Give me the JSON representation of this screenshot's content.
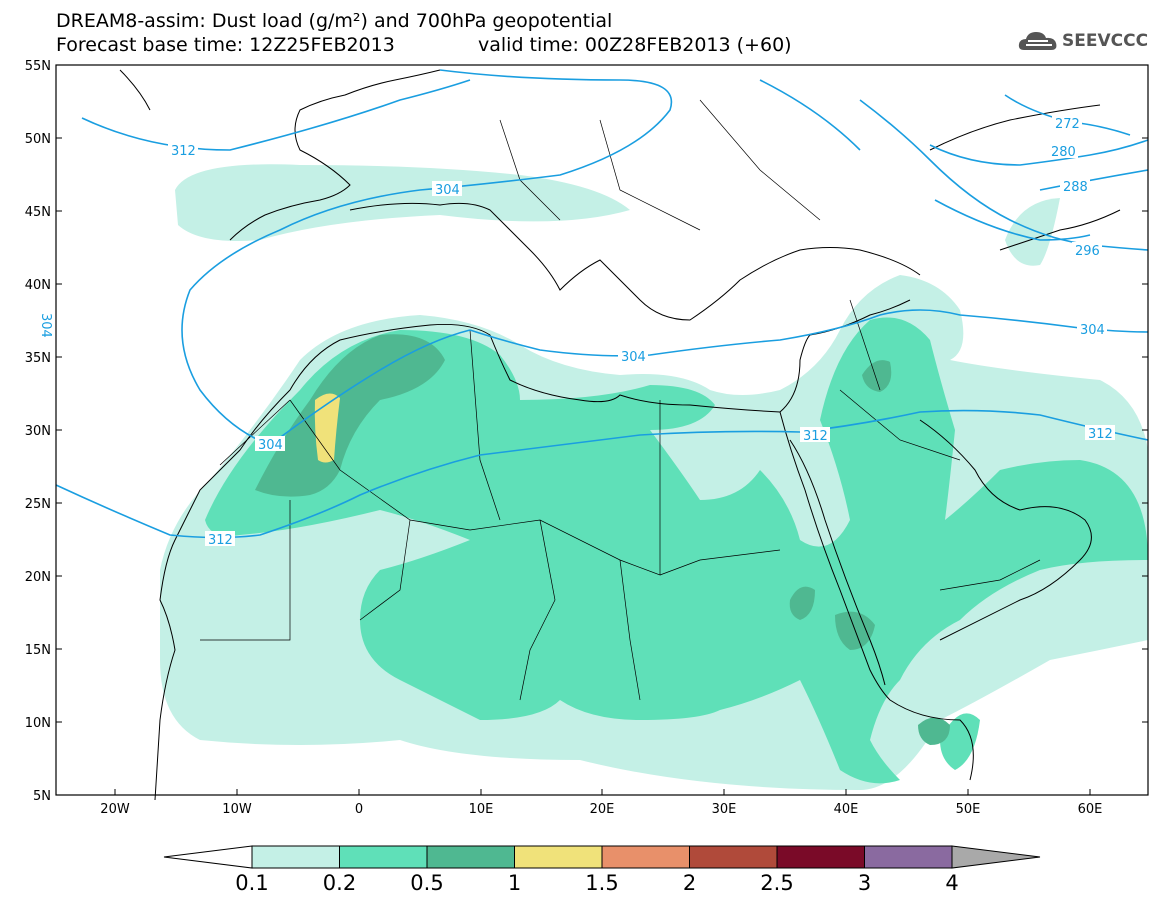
{
  "title_line1": "DREAM8-assim: Dust load (g/m²) and 700hPa geopotential",
  "title_line2_left": "Forecast base time: 12Z25FEB2013",
  "title_line2_right": "valid time: 00Z28FEB2013 (+60)",
  "logo_text": "SEEVCCC",
  "lat_labels": [
    "55N",
    "50N",
    "45N",
    "40N",
    "35N",
    "30N",
    "25N",
    "20N",
    "15N",
    "10N",
    "5N"
  ],
  "lon_labels": [
    "20W",
    "10W",
    "0",
    "10E",
    "20E",
    "30E",
    "40E",
    "50E",
    "60E"
  ],
  "contour_labels": [
    "312",
    "304",
    "304",
    "304",
    "312",
    "312",
    "272",
    "280",
    "288",
    "296",
    "304",
    "312",
    "304"
  ],
  "colorbar": {
    "ticks": [
      "0.1",
      "0.2",
      "0.5",
      "1",
      "1.5",
      "2",
      "2.5",
      "3",
      "4"
    ],
    "colors": [
      "#c4f0e6",
      "#5fe0b8",
      "#4fb891",
      "#f0e27a",
      "#e8906a",
      "#b04a3a",
      "#7a0a28",
      "#8a6aa0"
    ],
    "under_color": "#ffffff",
    "over_color": "#a9a9a9"
  },
  "colors": {
    "contour": "#1a9ee0",
    "dust_low": "#c4f0e6",
    "dust_mid": "#5fe0b8",
    "dust_high": "#4fb891",
    "dust_max": "#f0e27a"
  }
}
